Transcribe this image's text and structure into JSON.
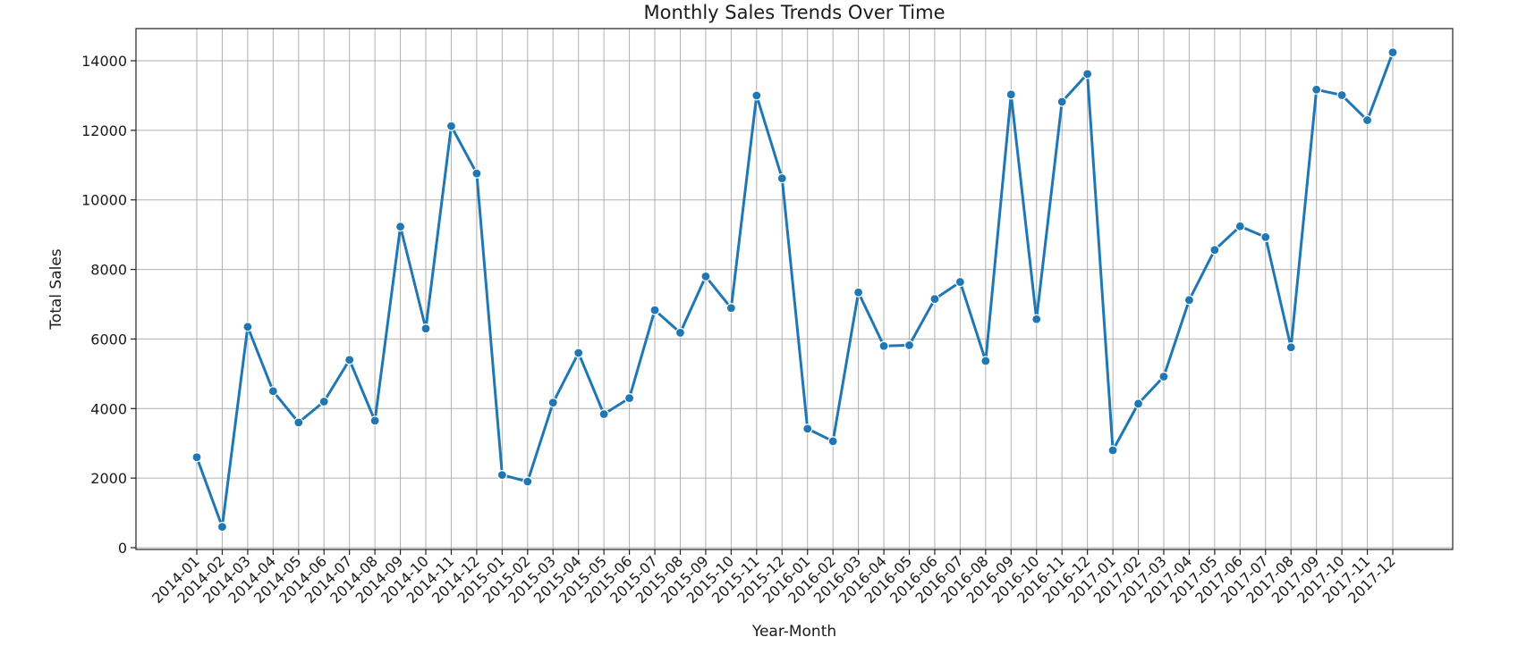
{
  "chart_data": {
    "type": "line",
    "title": "Monthly Sales Trends Over Time",
    "xlabel": "Year-Month",
    "ylabel": "Total Sales",
    "ylim": [
      0,
      15000
    ],
    "yticks": [
      0,
      2000,
      4000,
      6000,
      8000,
      10000,
      12000,
      14000
    ],
    "grid": true,
    "line_color": "#1f77b4",
    "categories": [
      "2014-01",
      "2014-02",
      "2014-03",
      "2014-04",
      "2014-05",
      "2014-06",
      "2014-07",
      "2014-08",
      "2014-09",
      "2014-10",
      "2014-11",
      "2014-12",
      "2015-01",
      "2015-02",
      "2015-03",
      "2015-04",
      "2015-05",
      "2015-06",
      "2015-07",
      "2015-08",
      "2015-09",
      "2015-10",
      "2015-11",
      "2015-12",
      "2016-01",
      "2016-02",
      "2016-03",
      "2016-04",
      "2016-05",
      "2016-06",
      "2016-07",
      "2016-08",
      "2016-09",
      "2016-10",
      "2016-11",
      "2016-12",
      "2017-01",
      "2017-02",
      "2017-03",
      "2017-04",
      "2017-05",
      "2017-06",
      "2017-07",
      "2017-08",
      "2017-09",
      "2017-10",
      "2017-11",
      "2017-12"
    ],
    "values": [
      2600,
      600,
      6350,
      4500,
      3600,
      4200,
      5400,
      3650,
      9230,
      6300,
      12120,
      10760,
      2090,
      1900,
      4170,
      5600,
      3840,
      4300,
      6830,
      6180,
      7800,
      6890,
      13000,
      10620,
      3420,
      3060,
      7340,
      5800,
      5820,
      7150,
      7640,
      5370,
      13030,
      6570,
      12820,
      13620,
      2800,
      4140,
      4920,
      7120,
      8560,
      9240,
      8930,
      5760,
      13170,
      13010,
      12290,
      14240
    ]
  }
}
